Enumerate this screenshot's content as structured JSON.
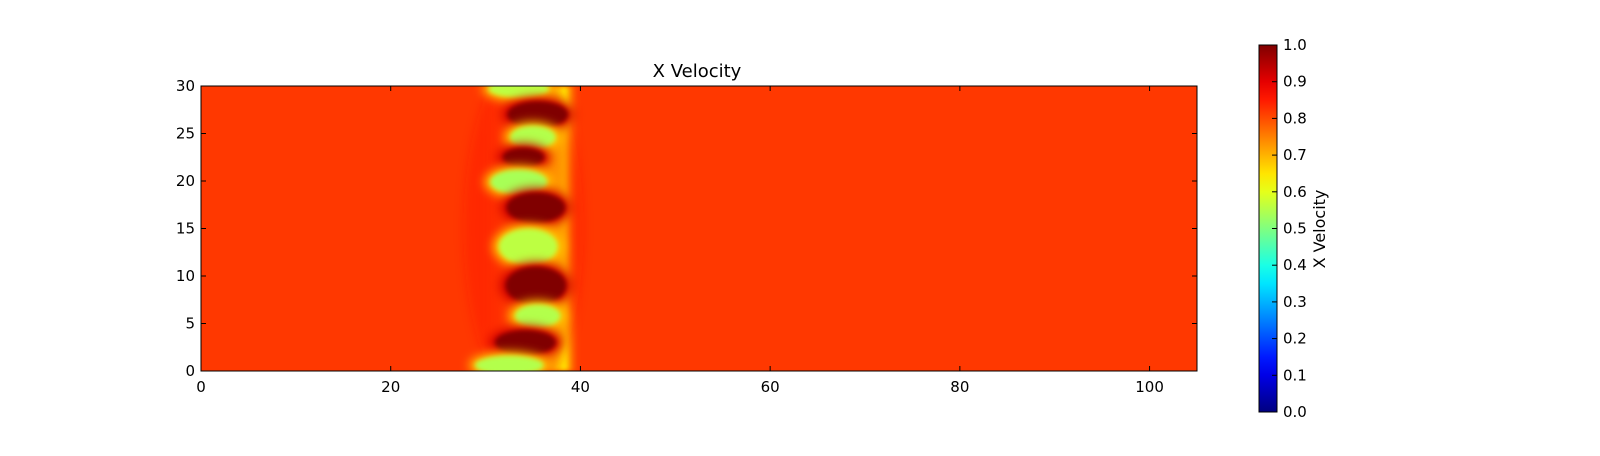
{
  "chart_data": [
    {
      "type": "heatmap",
      "title": "X Velocity",
      "xlabel": "",
      "ylabel": "",
      "xlim": [
        0,
        105
      ],
      "ylim": [
        0,
        30
      ],
      "x_ticks": [
        0,
        20,
        40,
        60,
        80,
        100
      ],
      "y_ticks": [
        0,
        5,
        10,
        15,
        20,
        25,
        30
      ],
      "colormap": "jet",
      "background_value": 0.82,
      "features": [
        {
          "x": 33.5,
          "y": 29.7,
          "half_width": 3.2,
          "half_height": 0.9,
          "value": 0.56
        },
        {
          "x": 35.5,
          "y": 27.0,
          "half_width": 3.2,
          "half_height": 1.4,
          "value": 1.0
        },
        {
          "x": 35.0,
          "y": 24.6,
          "half_width": 2.4,
          "half_height": 1.2,
          "value": 0.55
        },
        {
          "x": 34.0,
          "y": 22.5,
          "half_width": 2.2,
          "half_height": 1.0,
          "value": 1.0
        },
        {
          "x": 33.5,
          "y": 19.9,
          "half_width": 3.0,
          "half_height": 1.3,
          "value": 0.54
        },
        {
          "x": 35.3,
          "y": 17.2,
          "half_width": 3.1,
          "half_height": 1.6,
          "value": 1.0
        },
        {
          "x": 34.5,
          "y": 13.1,
          "half_width": 3.1,
          "half_height": 1.9,
          "value": 0.56
        },
        {
          "x": 35.3,
          "y": 9.0,
          "half_width": 3.2,
          "half_height": 2.0,
          "value": 1.0
        },
        {
          "x": 35.5,
          "y": 5.8,
          "half_width": 2.4,
          "half_height": 1.2,
          "value": 0.55
        },
        {
          "x": 34.2,
          "y": 3.0,
          "half_width": 3.2,
          "half_height": 1.3,
          "value": 1.0
        },
        {
          "x": 32.5,
          "y": 0.6,
          "half_width": 3.6,
          "half_height": 1.0,
          "value": 0.55
        }
      ],
      "yellow_band": {
        "x": 38.5,
        "x_min": 29.5,
        "y_min": 0,
        "y_max": 30,
        "value": 0.64
      }
    },
    {
      "type": "colorbar",
      "label": "X Velocity",
      "range": [
        0.0,
        1.0
      ],
      "tick_labels": [
        "0.0",
        "0.1",
        "0.2",
        "0.3",
        "0.4",
        "0.5",
        "0.6",
        "0.7",
        "0.8",
        "0.9",
        "1.0"
      ],
      "colormap": "jet"
    }
  ]
}
